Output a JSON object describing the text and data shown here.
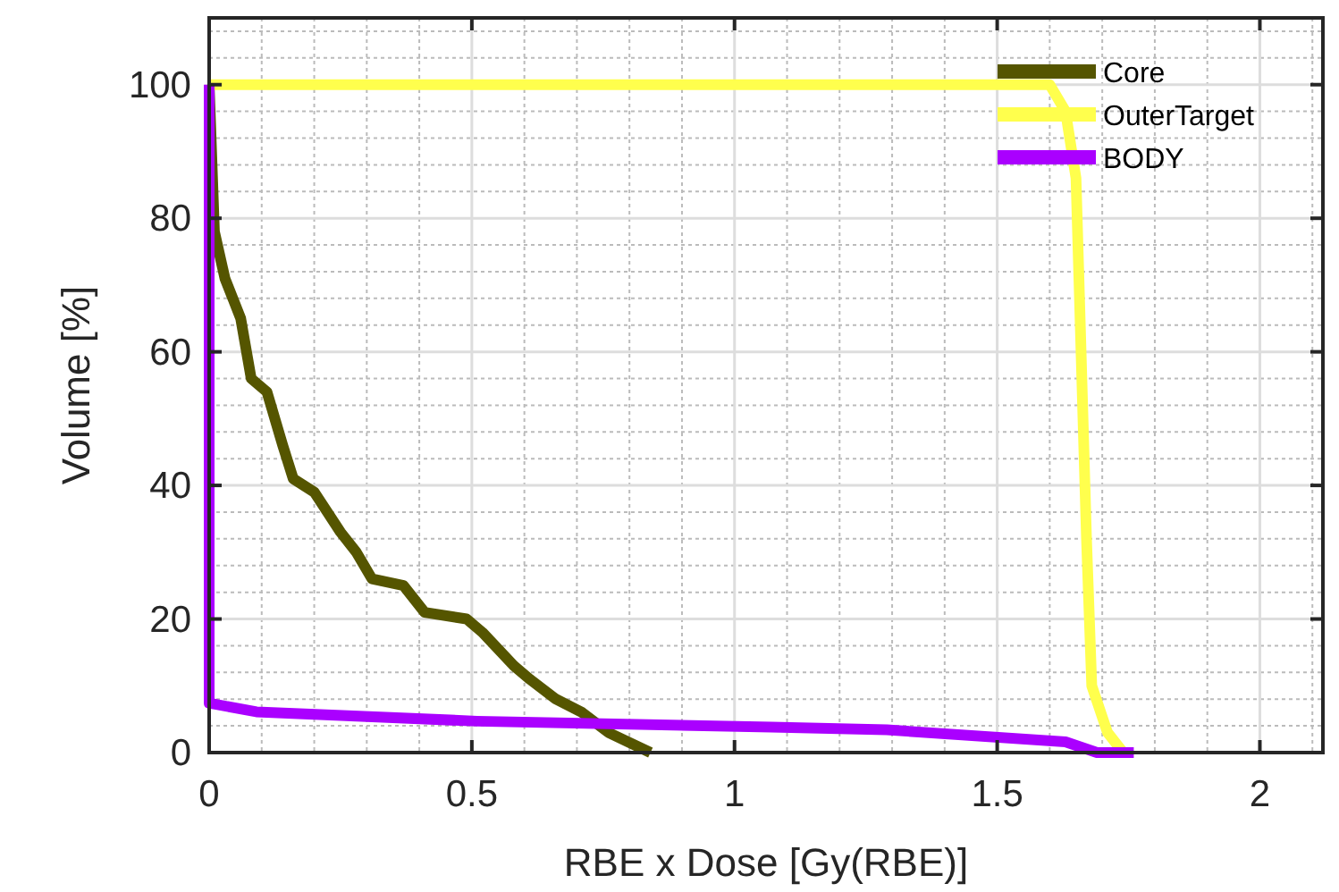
{
  "chart_data": {
    "type": "line",
    "xlabel": "RBE x Dose [Gy(RBE)]",
    "ylabel": "Volume [%]",
    "xlim": [
      0,
      2.12
    ],
    "ylim": [
      0,
      110
    ],
    "xticks": [
      0,
      0.5,
      1,
      1.5,
      2
    ],
    "yticks": [
      0,
      20,
      40,
      60,
      80,
      100
    ],
    "grid": true,
    "legend": "top right",
    "line_style": "solid",
    "series": [
      {
        "name": "Core",
        "color": "#555500",
        "x": [
          0,
          0.01,
          0.03,
          0.06,
          0.08,
          0.11,
          0.14,
          0.16,
          0.2,
          0.25,
          0.28,
          0.31,
          0.37,
          0.41,
          0.49,
          0.52,
          0.58,
          0.61,
          0.66,
          0.71,
          0.76,
          0.84
        ],
        "values": [
          100,
          78,
          71,
          65,
          56,
          54,
          46,
          41,
          39,
          33,
          30,
          26,
          25,
          21,
          20,
          18,
          13,
          11,
          8,
          6,
          3,
          0
        ]
      },
      {
        "name": "OuterTarget",
        "color": "#ffff4d",
        "x": [
          0,
          1.6,
          1.63,
          1.65,
          1.66,
          1.67,
          1.68,
          1.71,
          1.74
        ],
        "values": [
          100,
          100,
          96,
          86,
          59,
          32,
          10,
          3,
          0
        ]
      },
      {
        "name": "BODY",
        "color": "#aa00ff",
        "x": [
          0,
          0,
          0.09,
          0.51,
          1.07,
          1.29,
          1.63,
          1.69,
          1.76
        ],
        "values": [
          100,
          7.4,
          6.1,
          4.7,
          3.8,
          3.4,
          1.6,
          0,
          0
        ]
      }
    ]
  }
}
